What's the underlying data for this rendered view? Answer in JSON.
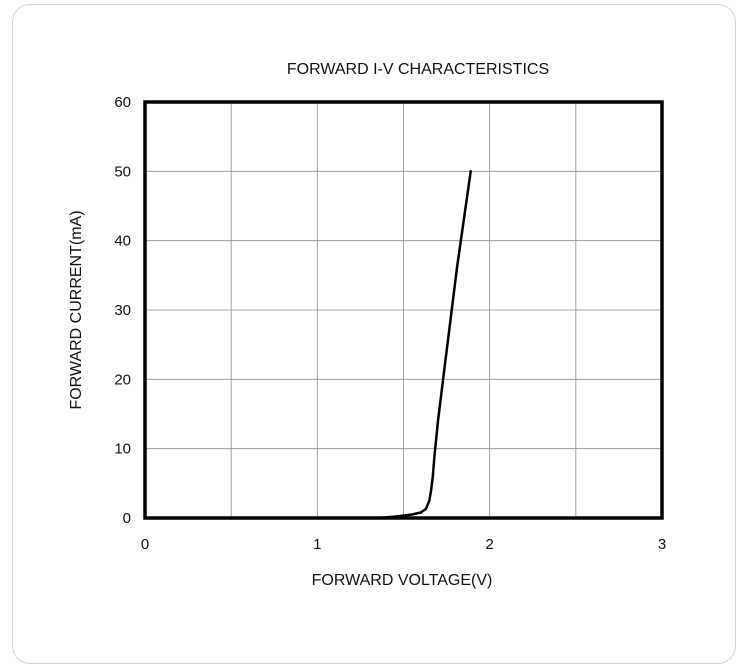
{
  "chart_data": {
    "type": "line",
    "title": "FORWARD I-V CHARACTERISTICS",
    "xlabel": "FORWARD VOLTAGE(V)",
    "ylabel": "FORWARD CURRENT(mA)",
    "xlim": [
      0,
      3
    ],
    "ylim": [
      0,
      60
    ],
    "x_ticks": [
      "0",
      "1",
      "2",
      "3"
    ],
    "y_ticks": [
      "0",
      "10",
      "20",
      "30",
      "40",
      "50",
      "60"
    ],
    "grid": true,
    "series": [
      {
        "x": [
          0.0,
          1.35,
          1.45,
          1.55,
          1.6,
          1.63,
          1.65,
          1.66,
          1.67,
          1.68,
          1.7,
          1.73,
          1.77,
          1.81,
          1.85,
          1.89
        ],
        "y": [
          0.0,
          0.0,
          0.2,
          0.5,
          0.8,
          1.3,
          2.5,
          4.0,
          6.0,
          9.0,
          14.0,
          20.0,
          28.0,
          36.0,
          43.0,
          50.0
        ]
      }
    ]
  }
}
